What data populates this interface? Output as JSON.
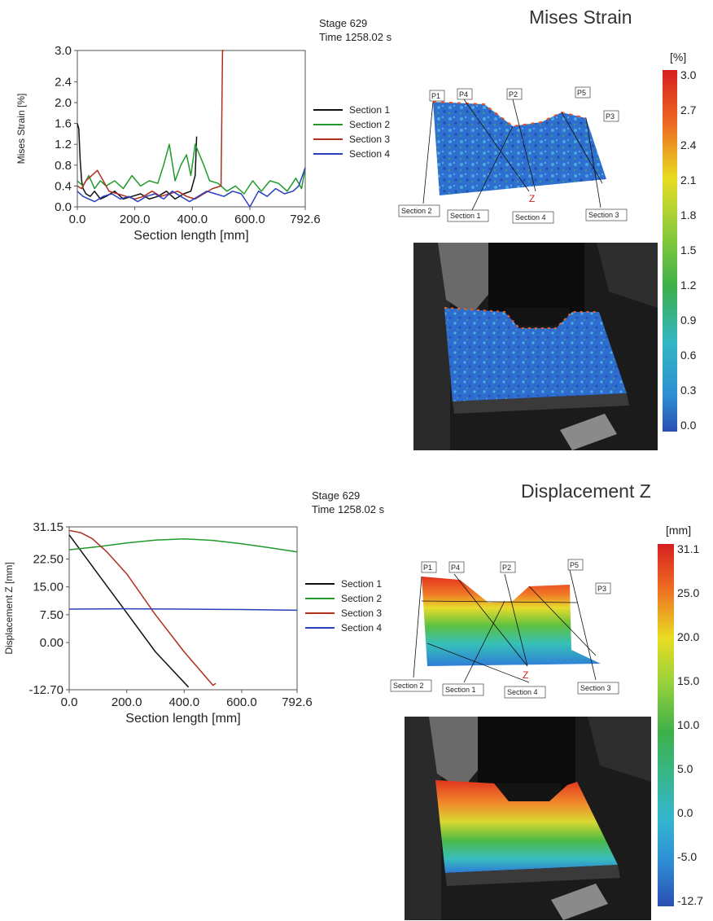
{
  "panels": [
    {
      "title": "Mises Strain",
      "stage_label": "Stage 629",
      "time_label": "Time  1258.02 s",
      "colorbar": {
        "unit": "[%]",
        "ticks": [
          "3.0",
          "2.7",
          "2.4",
          "2.1",
          "1.8",
          "1.5",
          "1.2",
          "0.9",
          "0.6",
          "0.3",
          "0.0"
        ]
      },
      "sections_map": {
        "point_labels": [
          "P1",
          "P4",
          "P2",
          "P5",
          "P3"
        ],
        "section_labels": [
          "Section 2",
          "Section 1",
          "Section 4",
          "Section 3"
        ],
        "axis_label": "Z"
      }
    },
    {
      "title": "Displacement Z",
      "stage_label": "Stage 629",
      "time_label": "Time  1258.02 s",
      "colorbar": {
        "unit": "[mm]",
        "ticks": [
          "31.1",
          "25.0",
          "20.0",
          "15.0",
          "10.0",
          "5.0",
          "0.0",
          "-5.0",
          "-12.7"
        ]
      },
      "sections_map": {
        "point_labels": [
          "P1",
          "P4",
          "P2",
          "P5",
          "P3"
        ],
        "section_labels": [
          "Section 2",
          "Section 1",
          "Section 4",
          "Section 3"
        ],
        "axis_label": "Z"
      }
    }
  ],
  "colors": {
    "section_1": "#111111",
    "section_2": "#1f9a2a",
    "section_3": "#b03020",
    "section_4": "#2a3fc0"
  },
  "chart_data": [
    {
      "type": "line",
      "xlabel": "Section length [mm]",
      "ylabel": "Mises Strain [%]",
      "xlim": [
        0,
        792.6
      ],
      "ylim": [
        0,
        3.0
      ],
      "x_ticks": [
        "0.0",
        "200.0",
        "400.0",
        "600.0",
        "792.6"
      ],
      "y_ticks": [
        "0.0",
        "0.4",
        "0.8",
        "1.2",
        "1.6",
        "2.0",
        "2.4",
        "3.0"
      ],
      "legend": "right",
      "series": [
        {
          "name": "Section 1",
          "color": "#111111",
          "x": [
            0,
            5,
            10,
            15,
            20,
            30,
            45,
            60,
            80,
            100,
            130,
            160,
            190,
            220,
            250,
            280,
            310,
            340,
            370,
            395,
            410,
            415
          ],
          "y": [
            1.6,
            1.5,
            0.9,
            0.5,
            0.35,
            0.25,
            0.2,
            0.3,
            0.15,
            0.2,
            0.3,
            0.15,
            0.2,
            0.25,
            0.15,
            0.2,
            0.3,
            0.15,
            0.25,
            0.3,
            0.6,
            1.35
          ]
        },
        {
          "name": "Section 2",
          "color": "#1f9a2a",
          "x": [
            0,
            20,
            40,
            60,
            80,
            100,
            130,
            160,
            190,
            220,
            250,
            280,
            300,
            320,
            340,
            360,
            380,
            395,
            410,
            425,
            440,
            460,
            490,
            520,
            550,
            580,
            610,
            640,
            670,
            700,
            730,
            760,
            780,
            792.6
          ],
          "y": [
            0.5,
            0.4,
            0.6,
            0.35,
            0.5,
            0.4,
            0.5,
            0.35,
            0.6,
            0.4,
            0.5,
            0.45,
            0.8,
            1.2,
            0.5,
            0.8,
            1.0,
            0.6,
            1.2,
            1.0,
            0.8,
            0.5,
            0.45,
            0.3,
            0.4,
            0.25,
            0.5,
            0.3,
            0.5,
            0.45,
            0.3,
            0.55,
            0.35,
            0.75
          ]
        },
        {
          "name": "Section 3",
          "color": "#b03020",
          "x": [
            0,
            15,
            30,
            50,
            70,
            90,
            110,
            140,
            170,
            200,
            230,
            260,
            290,
            320,
            350,
            380,
            410,
            440,
            470,
            500,
            505,
            510
          ],
          "y": [
            0.4,
            0.35,
            0.5,
            0.6,
            0.7,
            0.5,
            0.3,
            0.25,
            0.2,
            0.15,
            0.2,
            0.3,
            0.2,
            0.25,
            0.3,
            0.2,
            0.15,
            0.25,
            0.35,
            0.4,
            3.0,
            3.0
          ]
        },
        {
          "name": "Section 4",
          "color": "#2a3fc0",
          "x": [
            0,
            20,
            40,
            60,
            90,
            120,
            150,
            180,
            210,
            240,
            270,
            300,
            330,
            360,
            390,
            420,
            450,
            480,
            510,
            540,
            570,
            600,
            630,
            660,
            690,
            720,
            750,
            770,
            792.6
          ],
          "y": [
            0.3,
            0.2,
            0.15,
            0.1,
            0.2,
            0.25,
            0.15,
            0.2,
            0.1,
            0.2,
            0.25,
            0.15,
            0.3,
            0.2,
            0.1,
            0.2,
            0.3,
            0.25,
            0.2,
            0.3,
            0.25,
            0.0,
            0.3,
            0.2,
            0.35,
            0.25,
            0.3,
            0.4,
            0.75
          ]
        }
      ]
    },
    {
      "type": "line",
      "xlabel": "Section length [mm]",
      "ylabel": "Displacement Z [mm]",
      "xlim": [
        0,
        792.6
      ],
      "ylim": [
        -12.7,
        31.15
      ],
      "x_ticks": [
        "0.0",
        "200.0",
        "400.0",
        "600.0",
        "792.6"
      ],
      "y_ticks": [
        "31.15",
        "22.50",
        "15.00",
        "7.50",
        "0.00",
        "-12.70"
      ],
      "y_tick_values": [
        31.15,
        22.5,
        15.0,
        7.5,
        0.0,
        -12.7
      ],
      "legend": "right",
      "series": [
        {
          "name": "Section 1",
          "color": "#111111",
          "x": [
            0,
            100,
            200,
            300,
            415
          ],
          "y": [
            29.0,
            18.5,
            8.0,
            -2.5,
            -12.0
          ]
        },
        {
          "name": "Section 2",
          "color": "#1f9a2a",
          "x": [
            0,
            100,
            200,
            300,
            400,
            500,
            600,
            700,
            792.6
          ],
          "y": [
            25.0,
            25.8,
            26.8,
            27.6,
            27.9,
            27.5,
            26.6,
            25.5,
            24.4
          ]
        },
        {
          "name": "Section 3",
          "color": "#b03020",
          "x": [
            0,
            40,
            80,
            130,
            200,
            300,
            400,
            500,
            510
          ],
          "y": [
            30.2,
            29.6,
            28.0,
            24.5,
            18.5,
            7.5,
            -2.5,
            -11.5,
            -11.0
          ]
        },
        {
          "name": "Section 4",
          "color": "#2a3fc0",
          "x": [
            0,
            200,
            400,
            600,
            792.6
          ],
          "y": [
            9.0,
            9.1,
            9.0,
            8.9,
            8.7
          ]
        }
      ]
    }
  ]
}
